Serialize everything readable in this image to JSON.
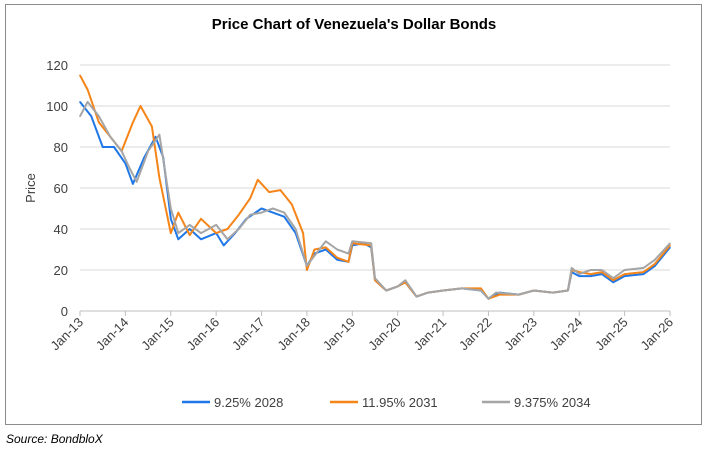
{
  "chart_data": {
    "type": "line",
    "title": "Price Chart of Venezuela's Dollar Bonds",
    "xlabel": "",
    "ylabel": "Price",
    "ylim": [
      0,
      120
    ],
    "yticks": [
      0,
      20,
      40,
      60,
      80,
      100,
      120
    ],
    "xticks": [
      "Jan-13",
      "Jan-14",
      "Jan-15",
      "Jan-16",
      "Jan-17",
      "Jan-18",
      "Jan-19",
      "Jan-20",
      "Jan-21",
      "Jan-22",
      "Jan-23",
      "Jan-24",
      "Jan-25",
      "Jan-26"
    ],
    "grid": "horizontal",
    "legend": "bottom",
    "source": "Source: BondbloX",
    "series": [
      {
        "name": "9.25% 2028",
        "color": "#1f77e8",
        "points": [
          [
            "2013-01",
            102
          ],
          [
            "2013-04",
            95
          ],
          [
            "2013-07",
            80
          ],
          [
            "2013-10",
            80
          ],
          [
            "2014-01",
            72
          ],
          [
            "2014-03",
            62
          ],
          [
            "2014-06",
            75
          ],
          [
            "2014-09",
            85
          ],
          [
            "2014-11",
            75
          ],
          [
            "2015-01",
            45
          ],
          [
            "2015-03",
            35
          ],
          [
            "2015-06",
            40
          ],
          [
            "2015-09",
            35
          ],
          [
            "2016-01",
            38
          ],
          [
            "2016-03",
            32
          ],
          [
            "2016-06",
            38
          ],
          [
            "2016-09",
            45
          ],
          [
            "2017-01",
            50
          ],
          [
            "2017-04",
            48
          ],
          [
            "2017-07",
            46
          ],
          [
            "2017-10",
            38
          ],
          [
            "2018-01",
            22
          ],
          [
            "2018-03",
            28
          ],
          [
            "2018-06",
            30
          ],
          [
            "2018-09",
            25
          ],
          [
            "2018-12",
            24
          ],
          [
            "2019-01",
            32
          ],
          [
            "2019-04",
            33
          ],
          [
            "2019-06",
            31
          ],
          [
            "2019-07",
            15
          ],
          [
            "2019-10",
            10
          ],
          [
            "2020-01",
            12
          ],
          [
            "2020-03",
            14
          ],
          [
            "2020-06",
            7
          ],
          [
            "2020-09",
            9
          ],
          [
            "2021-01",
            10
          ],
          [
            "2021-06",
            11
          ],
          [
            "2021-11",
            10
          ],
          [
            "2022-01",
            6
          ],
          [
            "2022-04",
            9
          ],
          [
            "2022-09",
            8
          ],
          [
            "2023-01",
            10
          ],
          [
            "2023-06",
            9
          ],
          [
            "2023-10",
            10
          ],
          [
            "2023-11",
            19
          ],
          [
            "2024-01",
            17
          ],
          [
            "2024-04",
            17
          ],
          [
            "2024-07",
            18
          ],
          [
            "2024-10",
            14
          ],
          [
            "2025-01",
            17
          ],
          [
            "2025-06",
            18
          ],
          [
            "2025-09",
            22
          ],
          [
            "2026-01",
            31
          ]
        ]
      },
      {
        "name": "11.95% 2031",
        "color": "#f58518",
        "points": [
          [
            "2013-01",
            115
          ],
          [
            "2013-03",
            108
          ],
          [
            "2013-06",
            92
          ],
          [
            "2013-09",
            85
          ],
          [
            "2013-12",
            78
          ],
          [
            "2014-03",
            92
          ],
          [
            "2014-05",
            100
          ],
          [
            "2014-08",
            90
          ],
          [
            "2014-10",
            65
          ],
          [
            "2015-01",
            38
          ],
          [
            "2015-03",
            48
          ],
          [
            "2015-06",
            37
          ],
          [
            "2015-09",
            45
          ],
          [
            "2016-01",
            38
          ],
          [
            "2016-04",
            40
          ],
          [
            "2016-07",
            47
          ],
          [
            "2016-10",
            55
          ],
          [
            "2016-12",
            64
          ],
          [
            "2017-03",
            58
          ],
          [
            "2017-06",
            59
          ],
          [
            "2017-09",
            52
          ],
          [
            "2017-12",
            38
          ],
          [
            "2018-01",
            20
          ],
          [
            "2018-03",
            30
          ],
          [
            "2018-06",
            31
          ],
          [
            "2018-09",
            26
          ],
          [
            "2018-12",
            24
          ],
          [
            "2019-01",
            33
          ],
          [
            "2019-06",
            32
          ],
          [
            "2019-07",
            15
          ],
          [
            "2019-10",
            10
          ],
          [
            "2020-01",
            12
          ],
          [
            "2020-03",
            14
          ],
          [
            "2020-06",
            7
          ],
          [
            "2020-09",
            9
          ],
          [
            "2021-01",
            10
          ],
          [
            "2021-06",
            11
          ],
          [
            "2021-11",
            11
          ],
          [
            "2022-01",
            6
          ],
          [
            "2022-04",
            8
          ],
          [
            "2022-09",
            8
          ],
          [
            "2023-01",
            10
          ],
          [
            "2023-06",
            9
          ],
          [
            "2023-10",
            10
          ],
          [
            "2023-11",
            20
          ],
          [
            "2024-01",
            19
          ],
          [
            "2024-04",
            18
          ],
          [
            "2024-07",
            19
          ],
          [
            "2024-10",
            15
          ],
          [
            "2025-01",
            18
          ],
          [
            "2025-06",
            19
          ],
          [
            "2025-09",
            23
          ],
          [
            "2026-01",
            32
          ]
        ]
      },
      {
        "name": "9.375% 2034",
        "color": "#a5a5a5",
        "points": [
          [
            "2013-01",
            95
          ],
          [
            "2013-03",
            102
          ],
          [
            "2013-06",
            95
          ],
          [
            "2013-09",
            85
          ],
          [
            "2013-12",
            78
          ],
          [
            "2014-02",
            70
          ],
          [
            "2014-04",
            63
          ],
          [
            "2014-07",
            78
          ],
          [
            "2014-10",
            86
          ],
          [
            "2015-01",
            50
          ],
          [
            "2015-03",
            38
          ],
          [
            "2015-06",
            42
          ],
          [
            "2015-09",
            38
          ],
          [
            "2016-01",
            42
          ],
          [
            "2016-04",
            35
          ],
          [
            "2016-07",
            40
          ],
          [
            "2016-10",
            47
          ],
          [
            "2017-01",
            48
          ],
          [
            "2017-04",
            50
          ],
          [
            "2017-07",
            48
          ],
          [
            "2017-10",
            40
          ],
          [
            "2018-01",
            22
          ],
          [
            "2018-03",
            27
          ],
          [
            "2018-06",
            34
          ],
          [
            "2018-09",
            30
          ],
          [
            "2018-12",
            28
          ],
          [
            "2019-01",
            34
          ],
          [
            "2019-06",
            33
          ],
          [
            "2019-07",
            16
          ],
          [
            "2019-10",
            10
          ],
          [
            "2020-01",
            12
          ],
          [
            "2020-03",
            15
          ],
          [
            "2020-06",
            7
          ],
          [
            "2020-09",
            9
          ],
          [
            "2021-01",
            10
          ],
          [
            "2021-06",
            11
          ],
          [
            "2021-11",
            10
          ],
          [
            "2022-01",
            6
          ],
          [
            "2022-03",
            9
          ],
          [
            "2022-09",
            8
          ],
          [
            "2023-01",
            10
          ],
          [
            "2023-06",
            9
          ],
          [
            "2023-10",
            10
          ],
          [
            "2023-11",
            21
          ],
          [
            "2024-01",
            18
          ],
          [
            "2024-04",
            20
          ],
          [
            "2024-07",
            20
          ],
          [
            "2024-10",
            16
          ],
          [
            "2025-01",
            20
          ],
          [
            "2025-06",
            21
          ],
          [
            "2025-09",
            25
          ],
          [
            "2026-01",
            33
          ]
        ]
      }
    ]
  }
}
